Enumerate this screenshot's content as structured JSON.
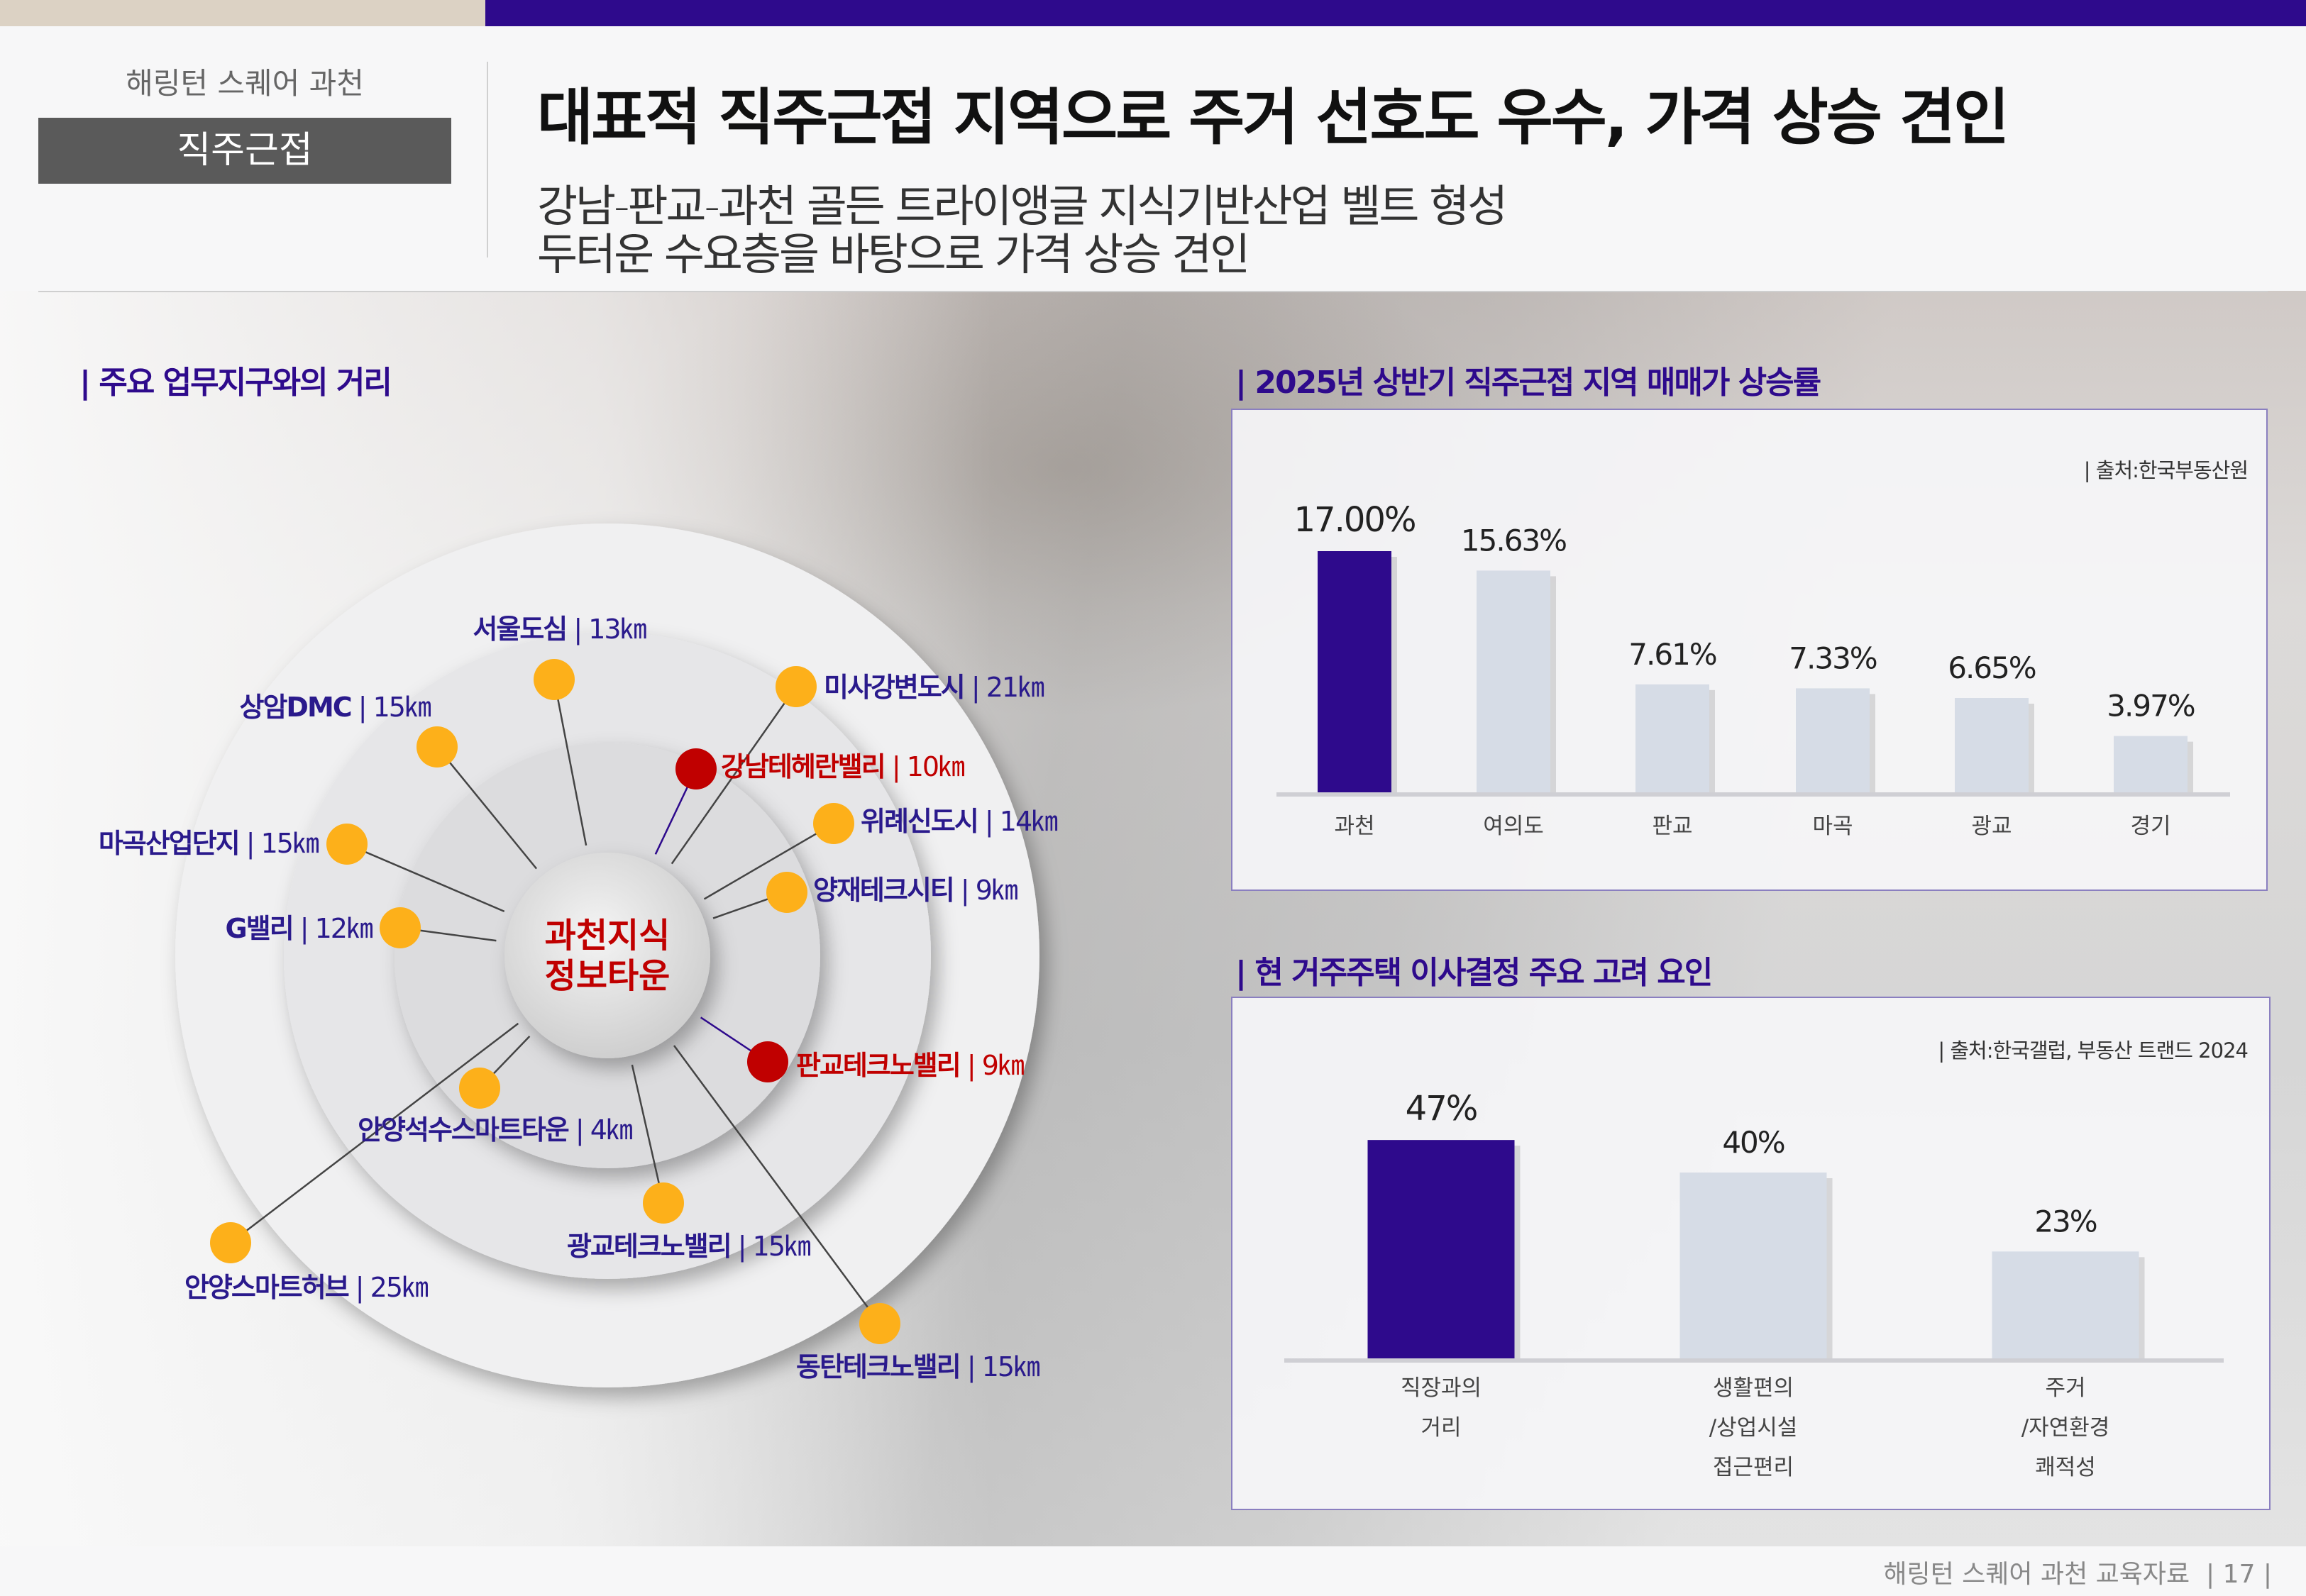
{
  "header": {
    "brand": "해링턴 스퀘어 과천",
    "tag": "직주근접",
    "title": "대표적 직주근접 지역으로 주거 선호도 우수, 가격 상승 견인",
    "subtitle": [
      "강남-판교-과천 골든 트라이앵글 지식기반산업 벨트 형성",
      "두터운 수요층을 바탕으로 가격 상승 견인"
    ]
  },
  "colors": {
    "accent": "#2e0a8c",
    "highlight": "#c00000",
    "dot": "#fdb01a",
    "bar_muted": "#d6dce6"
  },
  "diagram": {
    "section_title": "| 주요 업무지구와의 거리",
    "center": [
      "과천지식",
      "정보타운"
    ],
    "places": [
      {
        "name": "서울도심",
        "dist": "13㎞",
        "hl": false
      },
      {
        "name": "상암DMC",
        "dist": "15㎞",
        "hl": false
      },
      {
        "name": "미사강변도시",
        "dist": "21㎞",
        "hl": false
      },
      {
        "name": "강남테헤란밸리",
        "dist": "10㎞",
        "hl": true
      },
      {
        "name": "위례신도시",
        "dist": "14㎞",
        "hl": false
      },
      {
        "name": "양재테크시티",
        "dist": "9㎞",
        "hl": false
      },
      {
        "name": "마곡산업단지",
        "dist": "15㎞",
        "hl": false
      },
      {
        "name": "G밸리",
        "dist": "12㎞",
        "hl": false
      },
      {
        "name": "판교테크노밸리",
        "dist": "9㎞",
        "hl": true
      },
      {
        "name": "안양석수스마트타운",
        "dist": "4㎞",
        "hl": false
      },
      {
        "name": "광교테크노밸리",
        "dist": "15㎞",
        "hl": false
      },
      {
        "name": "안양스마트허브",
        "dist": "25㎞",
        "hl": false
      },
      {
        "name": "동탄테크노밸리",
        "dist": "15㎞",
        "hl": false
      }
    ]
  },
  "chart_data": [
    {
      "type": "bar",
      "title": "| 2025년 상반기 직주근접 지역 매매가 상승률",
      "source": "| 출처:한국부동산원",
      "categories": [
        "과천",
        "여의도",
        "판교",
        "마곡",
        "광교",
        "경기"
      ],
      "values": [
        17.0,
        15.63,
        7.61,
        7.33,
        6.65,
        3.97
      ],
      "labels": [
        "17.00%",
        "15.63%",
        "7.61%",
        "7.33%",
        "6.65%",
        "3.97%"
      ],
      "highlight_index": 0
    },
    {
      "type": "bar",
      "title": "| 현 거주주택 이사결정 주요 고려 요인",
      "source": "| 출처:한국갤럽, 부동산 트랜드 2024",
      "categories": [
        [
          "직장과의",
          "거리"
        ],
        [
          "생활편의",
          "/상업시설",
          "접근편리"
        ],
        [
          "주거",
          "/자연환경",
          "쾌적성"
        ]
      ],
      "values": [
        47,
        40,
        23
      ],
      "labels": [
        "47%",
        "40%",
        "23%"
      ],
      "highlight_index": 0
    }
  ],
  "footer": {
    "text": "해링턴 스퀘어 과천 교육자료",
    "page": "17"
  }
}
